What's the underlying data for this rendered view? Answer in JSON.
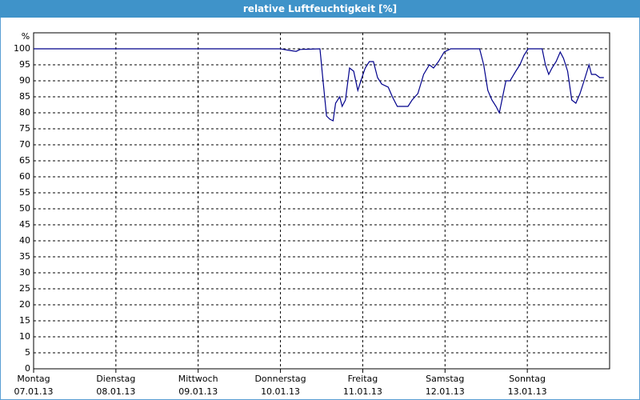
{
  "chart_data": {
    "type": "line",
    "title": "relative Luftfeuchtigkeit [%]",
    "y_label": "%",
    "color": "#00008b",
    "grid": true,
    "xlim": [
      0,
      7
    ],
    "ylim": [
      0,
      105
    ],
    "yticks": [
      0,
      5,
      10,
      15,
      20,
      25,
      30,
      35,
      40,
      45,
      50,
      55,
      60,
      65,
      70,
      75,
      80,
      85,
      90,
      95,
      100
    ],
    "xticks": [
      {
        "value": 0,
        "label": "Montag\n07.01.13"
      },
      {
        "value": 1,
        "label": "Dienstag\n08.01.13"
      },
      {
        "value": 2,
        "label": "Mittwoch\n09.01.13"
      },
      {
        "value": 3,
        "label": "Donnerstag\n10.01.13"
      },
      {
        "value": 4,
        "label": "Freitag\n11.01.13"
      },
      {
        "value": 5,
        "label": "Samstag\n12.01.13"
      },
      {
        "value": 6,
        "label": "Sonntag\n13.01.13"
      }
    ],
    "x": [
      0,
      3.0,
      3.04,
      3.11,
      3.19,
      3.24,
      3.48,
      3.51,
      3.56,
      3.6,
      3.64,
      3.67,
      3.72,
      3.75,
      3.79,
      3.84,
      3.89,
      3.94,
      3.99,
      4.03,
      4.08,
      4.13,
      4.18,
      4.23,
      4.31,
      4.36,
      4.42,
      4.48,
      4.55,
      4.6,
      4.67,
      4.74,
      4.81,
      4.86,
      4.92,
      4.99,
      5.07,
      5.42,
      5.47,
      5.52,
      5.57,
      5.62,
      5.66,
      5.7,
      5.74,
      5.79,
      5.86,
      5.91,
      5.96,
      6.01,
      6.18,
      6.22,
      6.26,
      6.3,
      6.35,
      6.4,
      6.44,
      6.49,
      6.54,
      6.59,
      6.64,
      6.69,
      6.75,
      6.78,
      6.83,
      6.88,
      6.93
    ],
    "values": [
      100,
      100,
      99.8,
      99.5,
      99.2,
      99.8,
      100,
      92,
      79,
      78,
      77.5,
      83,
      85,
      82,
      84,
      94,
      93,
      87,
      91,
      94,
      96,
      96,
      91,
      89,
      88,
      85,
      82,
      82,
      82,
      84,
      86,
      92,
      95,
      94,
      96,
      99,
      100,
      100,
      95,
      87,
      84,
      82,
      80,
      85,
      90,
      90,
      93,
      95,
      98,
      100,
      100,
      95,
      92,
      94,
      96,
      99,
      97,
      93,
      84,
      83,
      86,
      90,
      95,
      92,
      92,
      91,
      91
    ]
  }
}
